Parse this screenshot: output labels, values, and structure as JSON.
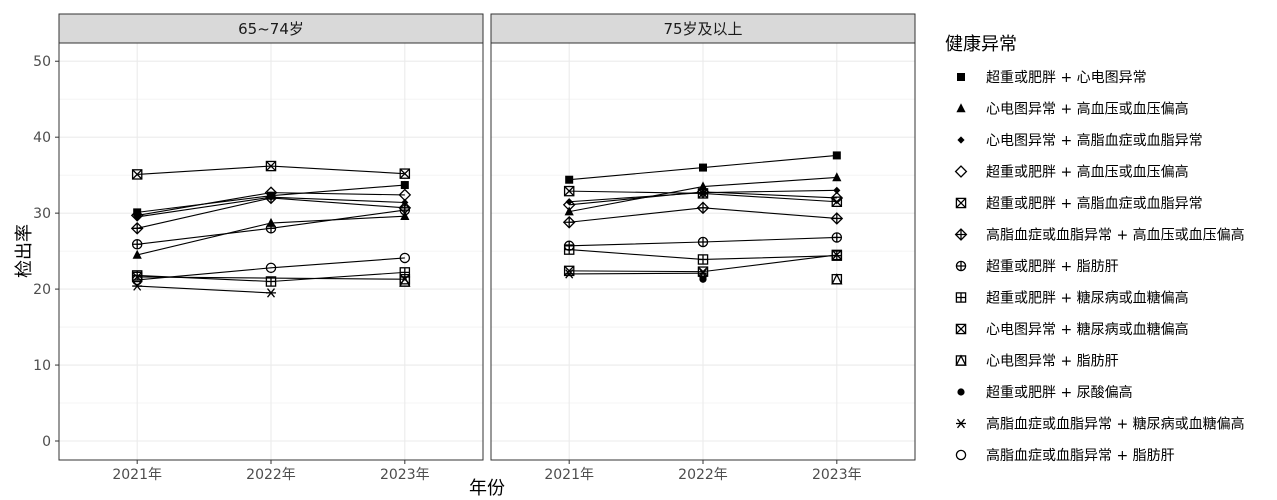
{
  "chart_data": {
    "type": "line",
    "ylabel": "检出率",
    "xlabel": "年份",
    "ylim": [
      0,
      50
    ],
    "y_ticks": [
      0,
      10,
      20,
      30,
      40,
      50
    ],
    "x": [
      "2021年",
      "2022年",
      "2023年"
    ],
    "grid": true,
    "legend_title": "健康异常",
    "legend_position": "right",
    "panels": [
      {
        "title": "65~74岁",
        "series": [
          {
            "name": "超重或肥胖 + 心电图异常",
            "shape": "square-filled",
            "values": [
              30.1,
              32.3,
              33.7
            ]
          },
          {
            "name": "心电图异常 + 高血压或血压偏高",
            "shape": "triangle-filled",
            "values": [
              24.5,
              28.7,
              29.6
            ]
          },
          {
            "name": "心电图异常 + 高脂血症或血脂异常",
            "shape": "diamond-filled",
            "values": [
              29.5,
              32.1,
              31.4
            ]
          },
          {
            "name": "超重或肥胖 + 高血压或血压偏高",
            "shape": "diamond-open",
            "values": [
              29.7,
              32.7,
              32.4
            ]
          },
          {
            "name": "超重或肥胖 + 高脂血症或血脂异常",
            "shape": "square-cross",
            "values": [
              35.1,
              36.2,
              35.2
            ]
          },
          {
            "name": "高脂血症或血脂异常 + 高血压或血压偏高",
            "shape": "diamond-plus",
            "values": [
              28.0,
              32.0,
              30.7
            ]
          },
          {
            "name": "超重或肥胖 + 脂肪肝",
            "shape": "circle-plus",
            "values": [
              25.9,
              28.0,
              30.4
            ]
          },
          {
            "name": "超重或肥胖 + 糖尿病或血糖偏高",
            "shape": "square-plus",
            "values": [
              21.8,
              21.0,
              22.2
            ]
          },
          {
            "name": "心电图异常 + 糖尿病或血糖偏高",
            "shape": "square-x",
            "values": [
              21.6,
              null,
              21.3
            ]
          },
          {
            "name": "心电图异常 + 脂肪肝",
            "shape": "square-triangle",
            "values": [
              null,
              null,
              21.0
            ]
          },
          {
            "name": "超重或肥胖 + 尿酸偏高",
            "shape": "circle-filled",
            "values": [
              null,
              null,
              null
            ]
          },
          {
            "name": "高脂血症或血脂异常 + 糖尿病或血糖偏高",
            "shape": "asterisk",
            "values": [
              20.4,
              19.5,
              null
            ]
          },
          {
            "name": "高脂血症或血脂异常 + 脂肪肝",
            "shape": "circle-open",
            "values": [
              21.2,
              22.8,
              24.1
            ]
          }
        ]
      },
      {
        "title": "75岁及以上",
        "series": [
          {
            "name": "超重或肥胖 + 心电图异常",
            "shape": "square-filled",
            "values": [
              34.4,
              36.0,
              37.6
            ]
          },
          {
            "name": "心电图异常 + 高血压或血压偏高",
            "shape": "triangle-filled",
            "values": [
              30.2,
              33.5,
              34.7
            ]
          },
          {
            "name": "心电图异常 + 高脂血症或血脂异常",
            "shape": "diamond-filled",
            "values": [
              31.5,
              32.7,
              33.0
            ]
          },
          {
            "name": "超重或肥胖 + 高血压或血压偏高",
            "shape": "diamond-open",
            "values": [
              31.1,
              32.8,
              32.0
            ]
          },
          {
            "name": "超重或肥胖 + 高脂血症或血脂异常",
            "shape": "square-cross",
            "values": [
              32.9,
              32.6,
              31.5
            ]
          },
          {
            "name": "高脂血症或血脂异常 + 高血压或血压偏高",
            "shape": "diamond-plus",
            "values": [
              28.8,
              30.7,
              29.3
            ]
          },
          {
            "name": "超重或肥胖 + 脂肪肝",
            "shape": "circle-plus",
            "values": [
              25.7,
              26.2,
              26.8
            ]
          },
          {
            "name": "超重或肥胖 + 糖尿病或血糖偏高",
            "shape": "square-plus",
            "values": [
              25.2,
              23.9,
              24.4
            ]
          },
          {
            "name": "心电图异常 + 糖尿病或血糖偏高",
            "shape": "square-x",
            "values": [
              22.4,
              22.3,
              24.5
            ]
          },
          {
            "name": "心电图异常 + 脂肪肝",
            "shape": "square-triangle",
            "values": [
              null,
              null,
              21.3
            ]
          },
          {
            "name": "超重或肥胖 + 尿酸偏高",
            "shape": "circle-filled",
            "values": [
              null,
              21.3,
              null
            ]
          },
          {
            "name": "高脂血症或血脂异常 + 糖尿病或血糖偏高",
            "shape": "asterisk",
            "values": [
              22.0,
              22.1,
              null
            ]
          },
          {
            "name": "高脂血症或血脂异常 + 脂肪肝",
            "shape": "circle-open",
            "values": [
              null,
              null,
              null
            ]
          }
        ]
      }
    ]
  }
}
